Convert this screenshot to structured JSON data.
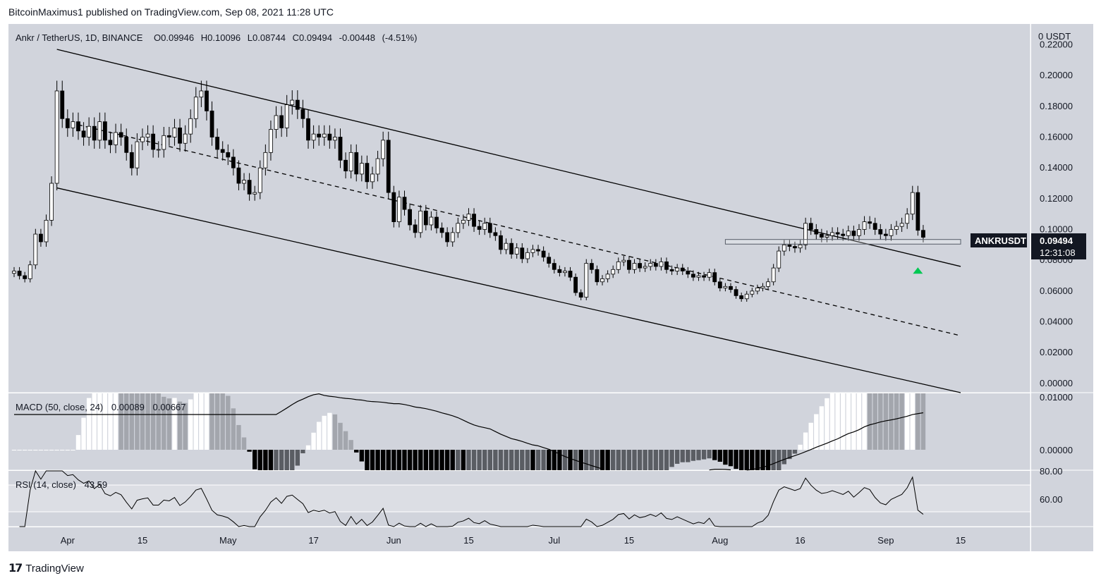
{
  "publisher": "BitcoinMaximus1 published on TradingView.com, Sep 08, 2021 11:28 UTC",
  "footer": {
    "brand": "TradingView"
  },
  "colors": {
    "background": "#d1d4dc",
    "up": "#ffffff",
    "down": "#000000",
    "signal_arrow": "#00c853",
    "rsi_band": "#dcdee4"
  },
  "chart_data": {
    "type": "candlestick",
    "symbol": "Ankr / TetherUS, 1D, BINANCE",
    "ohlc_legend": {
      "O": "0.09946",
      "H": "0.10096",
      "L": "0.08744",
      "C": "0.09494",
      "change": "-0.00448",
      "change_pct": "(-4.51%)"
    },
    "currency": "USDT",
    "price_axis_ticks": [
      "0.22000",
      "0.20000",
      "0.18000",
      "0.16000",
      "0.14000",
      "0.12000",
      "0.10000",
      "0.08000",
      "0.06000",
      "0.04000",
      "0.02000",
      "0.00000"
    ],
    "price_axis_range": [
      -0.006,
      0.228
    ],
    "time_axis_ticks": [
      {
        "label": "Apr",
        "date": "2021-04-01"
      },
      {
        "label": "15",
        "date": "2021-04-15"
      },
      {
        "label": "May",
        "date": "2021-05-01"
      },
      {
        "label": "17",
        "date": "2021-05-17"
      },
      {
        "label": "Jun",
        "date": "2021-06-01"
      },
      {
        "label": "15",
        "date": "2021-06-15"
      },
      {
        "label": "Jul",
        "date": "2021-07-01"
      },
      {
        "label": "15",
        "date": "2021-07-15"
      },
      {
        "label": "Aug",
        "date": "2021-08-01"
      },
      {
        "label": "16",
        "date": "2021-08-16"
      },
      {
        "label": "Sep",
        "date": "2021-09-01"
      },
      {
        "label": "15",
        "date": "2021-09-15"
      }
    ],
    "last_price_label": {
      "ticker": "ANKRUSDT",
      "price": "0.09494",
      "countdown": "12:31:08"
    },
    "candles": [
      {
        "d": "2021-03-22",
        "c": 0.073
      },
      {
        "d": "2021-03-23",
        "c": 0.07
      },
      {
        "d": "2021-03-24",
        "c": 0.068
      },
      {
        "d": "2021-03-25",
        "c": 0.077
      },
      {
        "d": "2021-03-26",
        "c": 0.097
      },
      {
        "d": "2021-03-27",
        "c": 0.092
      },
      {
        "d": "2021-03-28",
        "c": 0.106
      },
      {
        "d": "2021-03-29",
        "c": 0.13
      },
      {
        "d": "2021-03-30",
        "c": 0.19
      },
      {
        "d": "2021-03-31",
        "c": 0.172
      },
      {
        "d": "2021-04-01",
        "c": 0.166
      },
      {
        "d": "2021-04-02",
        "c": 0.17
      },
      {
        "d": "2021-04-03",
        "c": 0.164
      },
      {
        "d": "2021-04-04",
        "c": 0.16
      },
      {
        "d": "2021-04-05",
        "c": 0.167
      },
      {
        "d": "2021-04-06",
        "c": 0.158
      },
      {
        "d": "2021-04-07",
        "c": 0.17
      },
      {
        "d": "2021-04-08",
        "c": 0.158
      },
      {
        "d": "2021-04-09",
        "c": 0.155
      },
      {
        "d": "2021-04-10",
        "c": 0.163
      },
      {
        "d": "2021-04-11",
        "c": 0.16
      },
      {
        "d": "2021-04-12",
        "c": 0.15
      },
      {
        "d": "2021-04-13",
        "c": 0.14
      },
      {
        "d": "2021-04-14",
        "c": 0.157
      },
      {
        "d": "2021-04-15",
        "c": 0.16
      },
      {
        "d": "2021-04-16",
        "c": 0.162
      },
      {
        "d": "2021-04-17",
        "c": 0.152
      },
      {
        "d": "2021-04-18",
        "c": 0.152
      },
      {
        "d": "2021-04-19",
        "c": 0.161
      },
      {
        "d": "2021-04-20",
        "c": 0.16
      },
      {
        "d": "2021-04-21",
        "c": 0.166
      },
      {
        "d": "2021-04-22",
        "c": 0.156
      },
      {
        "d": "2021-04-23",
        "c": 0.162
      },
      {
        "d": "2021-04-24",
        "c": 0.172
      },
      {
        "d": "2021-04-25",
        "c": 0.186
      },
      {
        "d": "2021-04-26",
        "c": 0.19
      },
      {
        "d": "2021-04-27",
        "c": 0.177
      },
      {
        "d": "2021-04-28",
        "c": 0.16
      },
      {
        "d": "2021-04-29",
        "c": 0.152
      },
      {
        "d": "2021-04-30",
        "c": 0.15
      },
      {
        "d": "2021-05-01",
        "c": 0.147
      },
      {
        "d": "2021-05-02",
        "c": 0.14
      },
      {
        "d": "2021-05-03",
        "c": 0.13
      },
      {
        "d": "2021-05-04",
        "c": 0.132
      },
      {
        "d": "2021-05-05",
        "c": 0.123
      },
      {
        "d": "2021-05-06",
        "c": 0.124
      },
      {
        "d": "2021-05-07",
        "c": 0.14
      },
      {
        "d": "2021-05-08",
        "c": 0.15
      },
      {
        "d": "2021-05-09",
        "c": 0.165
      },
      {
        "d": "2021-05-10",
        "c": 0.174
      },
      {
        "d": "2021-05-11",
        "c": 0.166
      },
      {
        "d": "2021-05-12",
        "c": 0.181
      },
      {
        "d": "2021-05-13",
        "c": 0.184
      },
      {
        "d": "2021-05-14",
        "c": 0.178
      },
      {
        "d": "2021-05-15",
        "c": 0.172
      },
      {
        "d": "2021-05-16",
        "c": 0.158
      },
      {
        "d": "2021-05-17",
        "c": 0.162
      },
      {
        "d": "2021-05-18",
        "c": 0.16
      },
      {
        "d": "2021-05-19",
        "c": 0.162
      },
      {
        "d": "2021-05-20",
        "c": 0.158
      },
      {
        "d": "2021-05-21",
        "c": 0.16
      },
      {
        "d": "2021-05-22",
        "c": 0.145
      },
      {
        "d": "2021-05-23",
        "c": 0.138
      },
      {
        "d": "2021-05-24",
        "c": 0.15
      },
      {
        "d": "2021-05-25",
        "c": 0.136
      },
      {
        "d": "2021-05-26",
        "c": 0.143
      },
      {
        "d": "2021-05-27",
        "c": 0.131
      },
      {
        "d": "2021-05-28",
        "c": 0.136
      },
      {
        "d": "2021-05-29",
        "c": 0.146
      },
      {
        "d": "2021-05-30",
        "c": 0.158
      },
      {
        "d": "2021-05-31",
        "c": 0.124
      },
      {
        "d": "2021-06-01",
        "c": 0.105
      },
      {
        "d": "2021-06-02",
        "c": 0.121
      },
      {
        "d": "2021-06-03",
        "c": 0.113
      },
      {
        "d": "2021-06-04",
        "c": 0.103
      },
      {
        "d": "2021-06-05",
        "c": 0.098
      },
      {
        "d": "2021-06-06",
        "c": 0.112
      },
      {
        "d": "2021-06-07",
        "c": 0.103
      },
      {
        "d": "2021-06-08",
        "c": 0.108
      },
      {
        "d": "2021-06-09",
        "c": 0.101
      },
      {
        "d": "2021-06-10",
        "c": 0.098
      },
      {
        "d": "2021-06-11",
        "c": 0.092
      },
      {
        "d": "2021-06-12",
        "c": 0.098
      },
      {
        "d": "2021-06-13",
        "c": 0.104
      },
      {
        "d": "2021-06-14",
        "c": 0.106
      },
      {
        "d": "2021-06-15",
        "c": 0.11
      },
      {
        "d": "2021-06-16",
        "c": 0.102
      },
      {
        "d": "2021-06-17",
        "c": 0.1
      },
      {
        "d": "2021-06-18",
        "c": 0.104
      },
      {
        "d": "2021-06-19",
        "c": 0.098
      },
      {
        "d": "2021-06-20",
        "c": 0.096
      },
      {
        "d": "2021-06-21",
        "c": 0.087
      },
      {
        "d": "2021-06-22",
        "c": 0.091
      },
      {
        "d": "2021-06-23",
        "c": 0.084
      },
      {
        "d": "2021-06-24",
        "c": 0.088
      },
      {
        "d": "2021-06-25",
        "c": 0.081
      },
      {
        "d": "2021-06-26",
        "c": 0.085
      },
      {
        "d": "2021-06-27",
        "c": 0.087
      },
      {
        "d": "2021-06-28",
        "c": 0.086
      },
      {
        "d": "2021-06-29",
        "c": 0.082
      },
      {
        "d": "2021-06-30",
        "c": 0.078
      },
      {
        "d": "2021-07-01",
        "c": 0.074
      },
      {
        "d": "2021-07-02",
        "c": 0.072
      },
      {
        "d": "2021-07-03",
        "c": 0.073
      },
      {
        "d": "2021-07-04",
        "c": 0.069
      },
      {
        "d": "2021-07-05",
        "c": 0.059
      },
      {
        "d": "2021-07-06",
        "c": 0.056
      },
      {
        "d": "2021-07-07",
        "c": 0.078
      },
      {
        "d": "2021-07-08",
        "c": 0.074
      },
      {
        "d": "2021-07-09",
        "c": 0.066
      },
      {
        "d": "2021-07-10",
        "c": 0.068
      },
      {
        "d": "2021-07-11",
        "c": 0.071
      },
      {
        "d": "2021-07-12",
        "c": 0.074
      },
      {
        "d": "2021-07-13",
        "c": 0.079
      },
      {
        "d": "2021-07-14",
        "c": 0.08
      },
      {
        "d": "2021-07-15",
        "c": 0.074
      },
      {
        "d": "2021-07-16",
        "c": 0.078
      },
      {
        "d": "2021-07-17",
        "c": 0.075
      },
      {
        "d": "2021-07-18",
        "c": 0.076
      },
      {
        "d": "2021-07-19",
        "c": 0.078
      },
      {
        "d": "2021-07-20",
        "c": 0.076
      },
      {
        "d": "2021-07-21",
        "c": 0.079
      },
      {
        "d": "2021-07-22",
        "c": 0.074
      },
      {
        "d": "2021-07-23",
        "c": 0.073
      },
      {
        "d": "2021-07-24",
        "c": 0.075
      },
      {
        "d": "2021-07-25",
        "c": 0.073
      },
      {
        "d": "2021-07-26",
        "c": 0.071
      },
      {
        "d": "2021-07-27",
        "c": 0.069
      },
      {
        "d": "2021-07-28",
        "c": 0.07
      },
      {
        "d": "2021-07-29",
        "c": 0.069
      },
      {
        "d": "2021-07-30",
        "c": 0.072
      },
      {
        "d": "2021-07-31",
        "c": 0.066
      },
      {
        "d": "2021-08-01",
        "c": 0.062
      },
      {
        "d": "2021-08-02",
        "c": 0.063
      },
      {
        "d": "2021-08-03",
        "c": 0.061
      },
      {
        "d": "2021-08-04",
        "c": 0.057
      },
      {
        "d": "2021-08-05",
        "c": 0.055
      },
      {
        "d": "2021-08-06",
        "c": 0.058
      },
      {
        "d": "2021-08-07",
        "c": 0.06
      },
      {
        "d": "2021-08-08",
        "c": 0.062
      },
      {
        "d": "2021-08-09",
        "c": 0.063
      },
      {
        "d": "2021-08-10",
        "c": 0.066
      },
      {
        "d": "2021-08-11",
        "c": 0.075
      },
      {
        "d": "2021-08-12",
        "c": 0.086
      },
      {
        "d": "2021-08-13",
        "c": 0.09
      },
      {
        "d": "2021-08-14",
        "c": 0.089
      },
      {
        "d": "2021-08-15",
        "c": 0.088
      },
      {
        "d": "2021-08-16",
        "c": 0.09
      },
      {
        "d": "2021-08-17",
        "c": 0.104
      },
      {
        "d": "2021-08-18",
        "c": 0.1
      },
      {
        "d": "2021-08-19",
        "c": 0.097
      },
      {
        "d": "2021-08-20",
        "c": 0.095
      },
      {
        "d": "2021-08-21",
        "c": 0.096
      },
      {
        "d": "2021-08-22",
        "c": 0.098
      },
      {
        "d": "2021-08-23",
        "c": 0.097
      },
      {
        "d": "2021-08-24",
        "c": 0.096
      },
      {
        "d": "2021-08-25",
        "c": 0.099
      },
      {
        "d": "2021-08-26",
        "c": 0.096
      },
      {
        "d": "2021-08-27",
        "c": 0.1
      },
      {
        "d": "2021-08-28",
        "c": 0.105
      },
      {
        "d": "2021-08-29",
        "c": 0.104
      },
      {
        "d": "2021-08-30",
        "c": 0.1
      },
      {
        "d": "2021-08-31",
        "c": 0.097
      },
      {
        "d": "2021-09-01",
        "c": 0.096
      },
      {
        "d": "2021-09-02",
        "c": 0.1
      },
      {
        "d": "2021-09-03",
        "c": 0.102
      },
      {
        "d": "2021-09-04",
        "c": 0.104
      },
      {
        "d": "2021-09-05",
        "c": 0.11
      },
      {
        "d": "2021-09-06",
        "c": 0.124
      },
      {
        "d": "2021-09-07",
        "c": 0.09946
      },
      {
        "d": "2021-09-08",
        "c": 0.09494
      }
    ],
    "channel_lines": {
      "upper": {
        "from": {
          "d": "2021-03-30",
          "p": 0.217
        },
        "to": {
          "d": "2021-09-15",
          "p": 0.076
        }
      },
      "middle_dashed": {
        "from": {
          "d": "2021-04-03",
          "p": 0.168
        },
        "to": {
          "d": "2021-09-15",
          "p": 0.031
        }
      },
      "lower": {
        "from": {
          "d": "2021-03-30",
          "p": 0.127
        },
        "to": {
          "d": "2021-09-15",
          "p": -0.006
        }
      }
    },
    "support_box": {
      "from": "2021-08-02",
      "to": "2021-09-15",
      "low": 0.0905,
      "high": 0.0935
    },
    "signal_arrow": {
      "d": "2021-09-07",
      "p": 0.074
    },
    "macd": {
      "label": "MACD (50, close, 24)",
      "values": [
        "0.00089",
        "0.00667"
      ],
      "axis_ticks": [
        "0.01000",
        "0.00000"
      ]
    },
    "rsi": {
      "label": "RSI (14, close)",
      "value": "43.59",
      "axis_ticks": [
        "80.00",
        "60.00"
      ]
    }
  }
}
